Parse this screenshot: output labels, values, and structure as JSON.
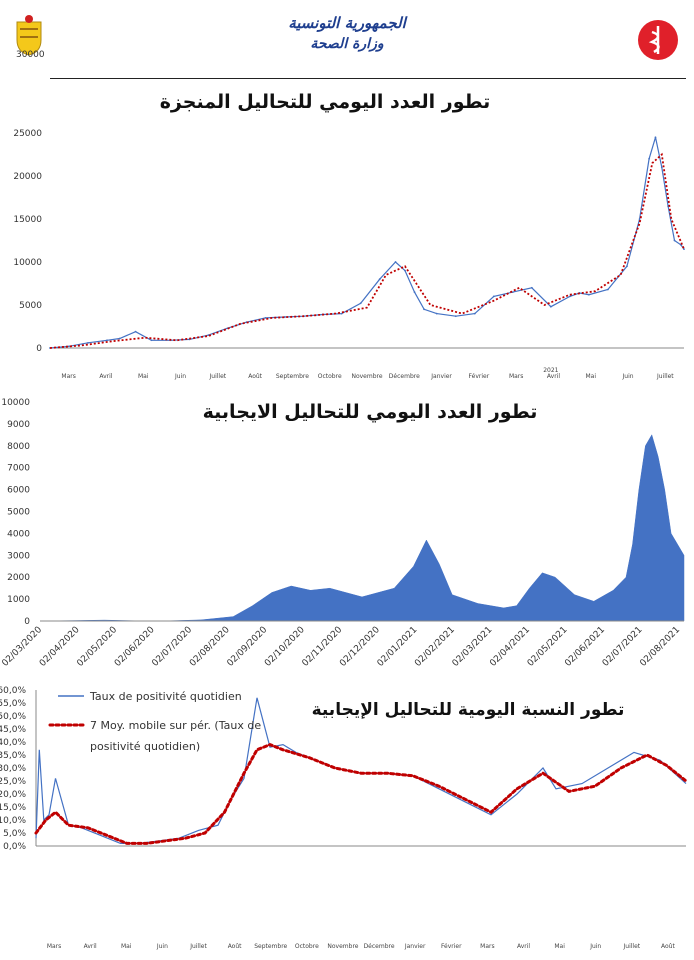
{
  "header": {
    "line1": "الجمهورية التونسية",
    "line2": "وزارة الصحة",
    "top_axis_label": "30000"
  },
  "colors": {
    "series": "#4472c4",
    "area": "#4472c4",
    "moving_avg": "#c00000",
    "header_text": "#1f3f8f",
    "logo": "#e0202a"
  },
  "chart_data": [
    {
      "type": "line",
      "title": "تطور العدد اليومي للتحاليل المنجزة",
      "ylim": [
        0,
        30000
      ],
      "yticks": [
        0,
        5000,
        10000,
        15000,
        20000,
        25000
      ],
      "grid": false,
      "x_months": [
        "Mars",
        "Avril",
        "Mai",
        "Juin",
        "Juillet",
        "Août",
        "Septembre",
        "Octobre",
        "Novembre",
        "Décembre",
        "Janvier",
        "Février",
        "Mars",
        "Avril",
        "Mai",
        "Juin",
        "Juillet"
      ],
      "x_year_label": "2021",
      "series": [
        {
          "style": "line",
          "x": [
            0,
            0.03,
            0.06,
            0.09,
            0.11,
            0.135,
            0.16,
            0.19,
            0.22,
            0.25,
            0.28,
            0.31,
            0.34,
            0.37,
            0.4,
            0.43,
            0.46,
            0.49,
            0.52,
            0.545,
            0.56,
            0.575,
            0.59,
            0.61,
            0.64,
            0.67,
            0.7,
            0.73,
            0.76,
            0.79,
            0.82,
            0.835,
            0.85,
            0.88,
            0.91,
            0.93,
            0.945,
            0.955,
            0.965,
            0.975,
            0.985,
            0.995,
            1.0
          ],
          "values": [
            0,
            200,
            600,
            900,
            1100,
            1900,
            900,
            900,
            1000,
            1500,
            2300,
            3000,
            3500,
            3600,
            3700,
            3900,
            4000,
            5200,
            8000,
            10000,
            9000,
            6500,
            4500,
            4000,
            3700,
            4000,
            6000,
            6500,
            7000,
            4800,
            6000,
            6400,
            6200,
            6800,
            9500,
            15000,
            22000,
            24500,
            21000,
            16500,
            12500,
            12000,
            11500
          ]
        },
        {
          "style": "moving_average",
          "x": [
            0,
            0.05,
            0.1,
            0.15,
            0.2,
            0.25,
            0.3,
            0.35,
            0.4,
            0.45,
            0.5,
            0.53,
            0.56,
            0.6,
            0.65,
            0.7,
            0.74,
            0.78,
            0.82,
            0.86,
            0.9,
            0.93,
            0.95,
            0.965,
            0.98,
            1.0
          ],
          "values": [
            0,
            300,
            800,
            1200,
            900,
            1400,
            2800,
            3500,
            3700,
            4000,
            4700,
            8500,
            9500,
            5000,
            4000,
            5500,
            7000,
            5000,
            6200,
            6600,
            8500,
            14500,
            21500,
            22500,
            15000,
            11500
          ]
        }
      ]
    },
    {
      "type": "area",
      "title": "تطور العدد اليومي للتحاليل الايجابية",
      "ylim": [
        0,
        10000
      ],
      "yticks": [
        0,
        1000,
        2000,
        3000,
        4000,
        5000,
        6000,
        7000,
        8000,
        9000,
        10000
      ],
      "grid": false,
      "x_labels": [
        "02/03/2020",
        "02/04/2020",
        "02/05/2020",
        "02/06/2020",
        "02/07/2020",
        "02/08/2020",
        "02/09/2020",
        "02/10/2020",
        "02/11/2020",
        "02/12/2020",
        "02/01/2021",
        "02/02/2021",
        "02/03/2021",
        "02/04/2021",
        "02/05/2021",
        "02/06/2021",
        "02/07/2021",
        "02/08/2021"
      ],
      "x": [
        0,
        0.05,
        0.1,
        0.15,
        0.2,
        0.25,
        0.3,
        0.33,
        0.36,
        0.39,
        0.42,
        0.45,
        0.5,
        0.55,
        0.58,
        0.6,
        0.62,
        0.64,
        0.68,
        0.72,
        0.74,
        0.76,
        0.78,
        0.8,
        0.83,
        0.86,
        0.89,
        0.91,
        0.92,
        0.93,
        0.94,
        0.95,
        0.96,
        0.97,
        0.98,
        0.99,
        1.0
      ],
      "values": [
        0,
        20,
        40,
        10,
        10,
        50,
        200,
        700,
        1300,
        1600,
        1400,
        1500,
        1100,
        1500,
        2500,
        3700,
        2600,
        1200,
        800,
        600,
        700,
        1500,
        2200,
        2000,
        1200,
        900,
        1400,
        2000,
        3500,
        6000,
        8000,
        8500,
        7500,
        6000,
        4000,
        3500,
        3000
      ]
    },
    {
      "type": "line",
      "title": "تطور النسبة اليومية للتحاليل الإيجابية",
      "ylim": [
        0,
        60
      ],
      "yticks": [
        "0,0%",
        "5,0%",
        "10,0%",
        "15,0%",
        "20,0%",
        "25,0%",
        "30,0%",
        "35,0%",
        "40,0%",
        "45,0%",
        "50,0%",
        "55,0%",
        "60,0%"
      ],
      "grid": false,
      "legend": {
        "position": "top-left",
        "entries": [
          "Taux de positivité quotidien",
          "7 Moy. mobile sur pér. (Taux de",
          "positivité quotidien)"
        ]
      },
      "x_months": [
        "Mars",
        "Avril",
        "Mai",
        "Juin",
        "Juillet",
        "Août",
        "Septembre",
        "Octobre",
        "Novembre",
        "Décembre",
        "Janvier",
        "Février",
        "Mars",
        "Avril",
        "Mai",
        "Juin",
        "Juillet",
        "Août"
      ],
      "series": [
        {
          "name": "Taux de positivité quotidien",
          "style": "line",
          "x": [
            0,
            0.005,
            0.012,
            0.02,
            0.03,
            0.05,
            0.07,
            0.1,
            0.13,
            0.16,
            0.19,
            0.22,
            0.25,
            0.28,
            0.3,
            0.32,
            0.34,
            0.36,
            0.38,
            0.4,
            0.43,
            0.46,
            0.5,
            0.54,
            0.58,
            0.62,
            0.66,
            0.7,
            0.74,
            0.78,
            0.8,
            0.84,
            0.88,
            0.92,
            0.96,
            1.0
          ],
          "values": [
            3,
            37,
            10,
            12,
            26,
            8,
            7,
            4,
            1,
            1,
            2,
            3,
            6,
            8,
            18,
            26,
            57,
            38,
            39,
            36,
            33,
            30,
            28,
            28,
            27,
            22,
            17,
            12,
            20,
            30,
            22,
            24,
            30,
            36,
            33,
            24
          ]
        },
        {
          "name": "7 Moy. mobile sur pér. (Taux de positivité quotidien)",
          "style": "moving_average",
          "x": [
            0,
            0.015,
            0.03,
            0.05,
            0.08,
            0.11,
            0.14,
            0.17,
            0.2,
            0.23,
            0.26,
            0.29,
            0.32,
            0.34,
            0.36,
            0.38,
            0.42,
            0.46,
            0.5,
            0.54,
            0.58,
            0.62,
            0.66,
            0.7,
            0.74,
            0.78,
            0.82,
            0.86,
            0.9,
            0.94,
            0.97,
            1.0
          ],
          "values": [
            5,
            10,
            13,
            8,
            7,
            4,
            1,
            1,
            2,
            3,
            5,
            13,
            28,
            37,
            39,
            37,
            34,
            30,
            28,
            28,
            27,
            23,
            18,
            13,
            22,
            28,
            21,
            23,
            30,
            35,
            31,
            25
          ]
        }
      ]
    }
  ]
}
